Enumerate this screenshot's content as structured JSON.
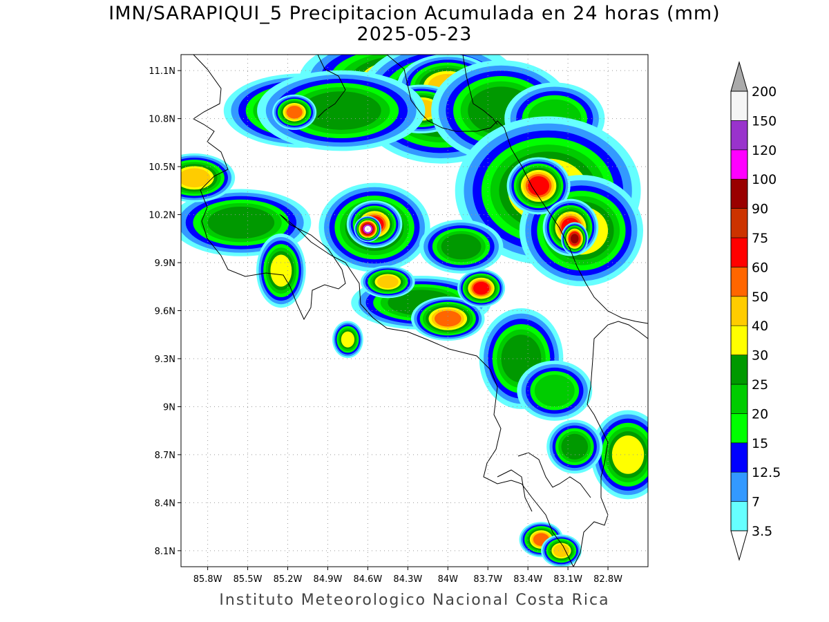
{
  "title_line1": "IMN/SARAPIQUI_5 Precipitacion Acumulada en 24 horas (mm)",
  "title_line2": "2025-05-23",
  "footer": "Instituto Meteorologico Nacional Costa Rica",
  "map": {
    "lon_range": [
      -86.0,
      -82.5
    ],
    "lat_range": [
      8.0,
      11.2
    ],
    "lon_ticks": [
      {
        "lon": -85.8,
        "label": "85.8W"
      },
      {
        "lon": -85.5,
        "label": "85.5W"
      },
      {
        "lon": -85.2,
        "label": "85.2W"
      },
      {
        "lon": -84.9,
        "label": "84.9W"
      },
      {
        "lon": -84.6,
        "label": "84.6W"
      },
      {
        "lon": -84.3,
        "label": "84.3W"
      },
      {
        "lon": -84.0,
        "label": "84W"
      },
      {
        "lon": -83.7,
        "label": "83.7W"
      },
      {
        "lon": -83.4,
        "label": "83.4W"
      },
      {
        "lon": -83.1,
        "label": "83.1W"
      },
      {
        "lon": -82.8,
        "label": "82.8W"
      }
    ],
    "lat_ticks": [
      {
        "lat": 11.1,
        "label": "11.1N"
      },
      {
        "lat": 10.8,
        "label": "10.8N"
      },
      {
        "lat": 10.5,
        "label": "10.5N"
      },
      {
        "lat": 10.2,
        "label": "10.2N"
      },
      {
        "lat": 9.9,
        "label": "9.9N"
      },
      {
        "lat": 9.6,
        "label": "9.6N"
      },
      {
        "lat": 9.3,
        "label": "9.3N"
      },
      {
        "lat": 9.0,
        "label": "9N"
      },
      {
        "lat": 8.7,
        "label": "8.7N"
      },
      {
        "lat": 8.4,
        "label": "8.4N"
      },
      {
        "lat": 8.1,
        "label": "8.1N"
      }
    ]
  },
  "colorbar": {
    "levels": [
      "3.5",
      "7",
      "12.5",
      "15",
      "20",
      "25",
      "30",
      "40",
      "50",
      "60",
      "75",
      "90",
      "100",
      "120",
      "150",
      "200"
    ],
    "colors": [
      "#66ffff",
      "#3399ff",
      "#0000ff",
      "#00ff00",
      "#00cc00",
      "#009900",
      "#ffff00",
      "#ffcc00",
      "#ff6600",
      "#ff0000",
      "#cc3300",
      "#990000",
      "#ff00ff",
      "#9933cc",
      "#f5f5f5"
    ],
    "over_color": "#aaaaaa",
    "under_color": "#ffffff"
  },
  "rain_cells": [
    {
      "lon": -84.3,
      "lat": 11.05,
      "rx": 0.35,
      "ry": 0.12,
      "level": 30
    },
    {
      "lon": -84.05,
      "lat": 10.9,
      "rx": 0.25,
      "ry": 0.15,
      "level": 40
    },
    {
      "lon": -84.0,
      "lat": 11.0,
      "rx": 0.15,
      "ry": 0.08,
      "level": 40
    },
    {
      "lon": -84.2,
      "lat": 10.86,
      "rx": 0.12,
      "ry": 0.06,
      "level": 40
    },
    {
      "lon": -85.1,
      "lat": 10.85,
      "rx": 0.25,
      "ry": 0.1,
      "level": 30
    },
    {
      "lon": -84.8,
      "lat": 10.85,
      "rx": 0.3,
      "ry": 0.12,
      "level": 25
    },
    {
      "lon": -85.15,
      "lat": 10.84,
      "rx": 0.06,
      "ry": 0.04,
      "level": 50
    },
    {
      "lon": -83.6,
      "lat": 10.85,
      "rx": 0.25,
      "ry": 0.15,
      "level": 25
    },
    {
      "lon": -83.2,
      "lat": 10.8,
      "rx": 0.2,
      "ry": 0.12,
      "level": 20
    },
    {
      "lon": -83.25,
      "lat": 10.35,
      "rx": 0.3,
      "ry": 0.2,
      "level": 30
    },
    {
      "lon": -83.0,
      "lat": 10.1,
      "rx": 0.2,
      "ry": 0.15,
      "level": 30
    },
    {
      "lon": -83.32,
      "lat": 10.38,
      "rx": 0.08,
      "ry": 0.06,
      "level": 60
    },
    {
      "lon": -83.08,
      "lat": 10.12,
      "rx": 0.07,
      "ry": 0.06,
      "level": 60
    },
    {
      "lon": -83.05,
      "lat": 10.05,
      "rx": 0.03,
      "ry": 0.03,
      "level": 90
    },
    {
      "lon": -84.55,
      "lat": 10.12,
      "rx": 0.18,
      "ry": 0.12,
      "level": 30
    },
    {
      "lon": -84.55,
      "lat": 10.14,
      "rx": 0.07,
      "ry": 0.05,
      "level": 60
    },
    {
      "lon": -84.6,
      "lat": 10.11,
      "rx": 0.025,
      "ry": 0.02,
      "level": 150
    },
    {
      "lon": -85.55,
      "lat": 10.15,
      "rx": 0.25,
      "ry": 0.1,
      "level": 25
    },
    {
      "lon": -85.25,
      "lat": 9.85,
      "rx": 0.08,
      "ry": 0.1,
      "level": 30
    },
    {
      "lon": -85.9,
      "lat": 10.43,
      "rx": 0.12,
      "ry": 0.06,
      "level": 40
    },
    {
      "lon": -84.2,
      "lat": 9.65,
      "rx": 0.25,
      "ry": 0.08,
      "level": 25
    },
    {
      "lon": -84.0,
      "lat": 9.55,
      "rx": 0.1,
      "ry": 0.05,
      "level": 50
    },
    {
      "lon": -84.45,
      "lat": 9.78,
      "rx": 0.08,
      "ry": 0.04,
      "level": 40
    },
    {
      "lon": -83.75,
      "lat": 9.74,
      "rx": 0.06,
      "ry": 0.04,
      "level": 60
    },
    {
      "lon": -83.9,
      "lat": 10.0,
      "rx": 0.15,
      "ry": 0.08,
      "level": 25
    },
    {
      "lon": -83.45,
      "lat": 9.3,
      "rx": 0.15,
      "ry": 0.15,
      "level": 25
    },
    {
      "lon": -83.2,
      "lat": 9.1,
      "rx": 0.15,
      "ry": 0.1,
      "level": 20
    },
    {
      "lon": -82.65,
      "lat": 8.7,
      "rx": 0.12,
      "ry": 0.12,
      "level": 30
    },
    {
      "lon": -83.05,
      "lat": 8.75,
      "rx": 0.1,
      "ry": 0.08,
      "level": 25
    },
    {
      "lon": -83.3,
      "lat": 8.17,
      "rx": 0.06,
      "ry": 0.04,
      "level": 50
    },
    {
      "lon": -83.15,
      "lat": 8.1,
      "rx": 0.06,
      "ry": 0.04,
      "level": 40
    },
    {
      "lon": -84.75,
      "lat": 9.42,
      "rx": 0.05,
      "ry": 0.05,
      "level": 30
    }
  ]
}
